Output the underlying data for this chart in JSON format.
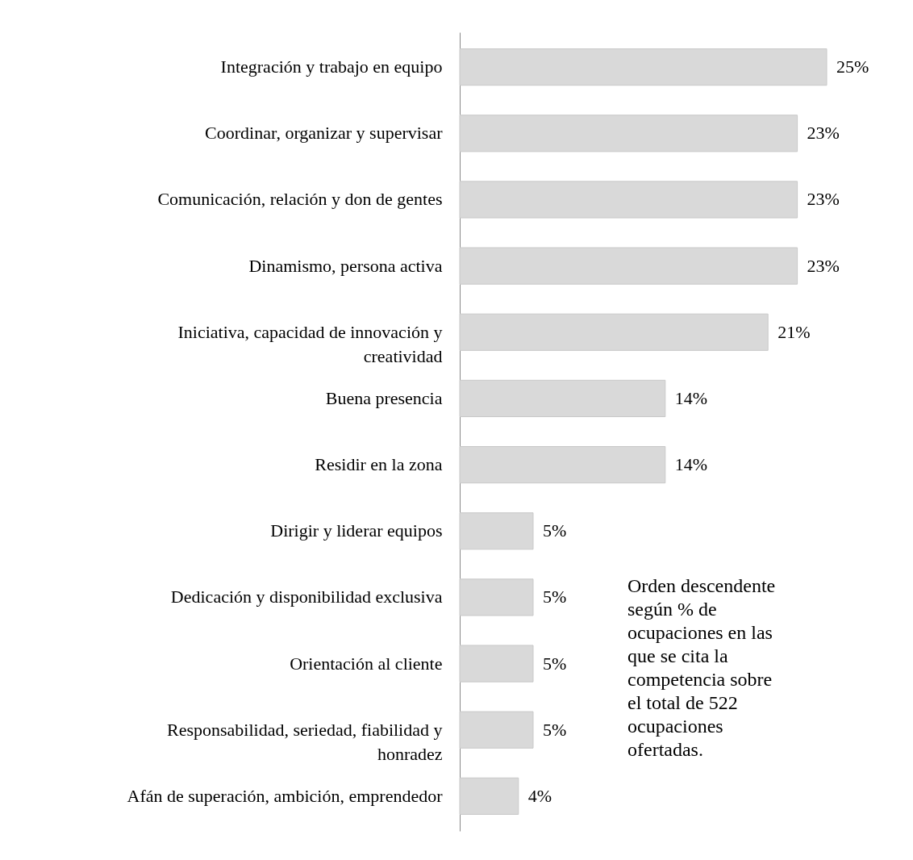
{
  "chart_data": {
    "type": "bar",
    "orientation": "horizontal",
    "categories": [
      "Integración y trabajo en equipo",
      "Coordinar, organizar y supervisar",
      "Comunicación, relación y don de gentes",
      "Dinamismo, persona activa",
      "Iniciativa, capacidad de innovación y creatividad",
      "Buena presencia",
      "Residir en la zona",
      "Dirigir y liderar equipos",
      "Dedicación y disponibilidad exclusiva",
      "Orientación al cliente",
      "Responsabilidad, seriedad, fiabilidad y honradez",
      "Afán de superación, ambición, emprendedor"
    ],
    "values": [
      25,
      23,
      23,
      23,
      21,
      14,
      14,
      5,
      5,
      5,
      5,
      4
    ],
    "value_labels": [
      "25%",
      "23%",
      "23%",
      "23%",
      "21%",
      "14%",
      "14%",
      "5%",
      "5%",
      "5%",
      "5%",
      "4%"
    ],
    "color": "#d9d9d9",
    "tick_labels": "y",
    "grid": false,
    "annotations": [
      "Orden descendente según % de ocupaciones en las que se cita la competencia sobre el total de 522 ocupaciones ofertadas."
    ]
  }
}
